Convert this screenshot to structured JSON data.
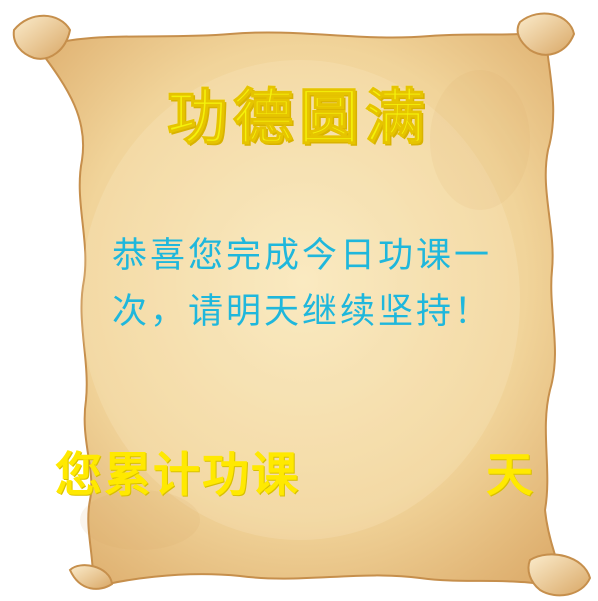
{
  "popup": {
    "title": "功德圆满",
    "message": "恭喜您完成今日功课一次，请明天继续坚持！",
    "total_label": "您累计功课",
    "total_days": "",
    "total_unit": "天"
  },
  "colors": {
    "title": "#f5f20a",
    "message": "#1fb7dc",
    "total": "#ffe900",
    "parchment_light": "#f8e4b4",
    "parchment_dark": "#e2b574"
  }
}
